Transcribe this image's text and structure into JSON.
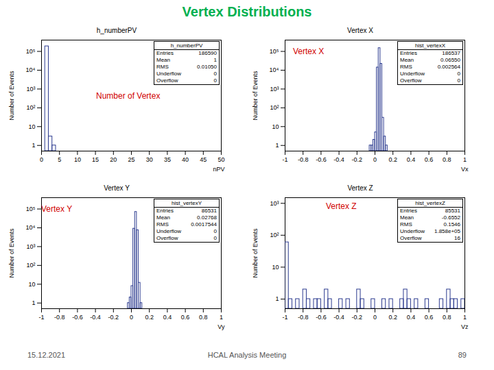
{
  "title": "Vertex Distributions",
  "footer": {
    "date": "15.12.2021",
    "meeting": "HCAL Analysis Meeting",
    "page": "89"
  },
  "chart_data": [
    {
      "type": "histogram",
      "title": "h_numberPV",
      "annotation": "Number of Vertex",
      "x_label": "nPV",
      "y_label": "Number of Events",
      "color": "#2b3a8f",
      "log": "y",
      "bins": [
        0,
        1,
        2,
        3,
        4,
        5,
        6,
        7,
        8,
        9,
        10,
        11,
        12,
        13,
        14,
        15,
        16,
        17,
        18,
        19,
        20,
        21,
        22,
        23,
        24,
        25,
        26,
        27,
        28,
        29,
        30,
        31,
        32,
        33,
        34,
        35,
        36,
        37,
        38,
        39,
        40,
        41,
        42,
        43,
        44,
        45,
        46,
        47,
        48,
        49,
        50
      ],
      "counts": [
        0,
        186586,
        3,
        1,
        0,
        0,
        0,
        0,
        0,
        0,
        0,
        0,
        0,
        0,
        0,
        0,
        0,
        0,
        0,
        0,
        0,
        0,
        0,
        0,
        0,
        0,
        0,
        0,
        0,
        0,
        0,
        0,
        0,
        0,
        0,
        0,
        0,
        0,
        0,
        0,
        0,
        0,
        0,
        0,
        0,
        0,
        0,
        0,
        0,
        0
      ],
      "xlim": [
        0,
        50
      ],
      "xticks": [
        0,
        5,
        10,
        15,
        20,
        25,
        30,
        35,
        40,
        45,
        50
      ],
      "ylim": [
        0.5,
        400000
      ],
      "yticks": [
        1,
        10,
        {
          "value": 100,
          "label": "10²"
        },
        {
          "value": 1000,
          "label": "10³"
        },
        {
          "value": 10000,
          "label": "10⁴"
        },
        {
          "value": 100000,
          "label": "10⁵"
        }
      ],
      "stats": {
        "name": "h_numberPV",
        "rows": [
          [
            "Entries",
            "186590"
          ],
          [
            "Mean",
            "1"
          ],
          [
            "RMS",
            "0.01050"
          ],
          [
            "Underflow",
            "0"
          ],
          [
            "Overflow",
            "0"
          ]
        ]
      }
    },
    {
      "type": "histogram",
      "title": "Vertex X",
      "annotation": "Vertex X",
      "x_label": "Vx",
      "y_label": "Number of Events",
      "color": "#2b3a8f",
      "log": "y",
      "bins": [
        -0.1,
        -0.08,
        -0.06,
        -0.04,
        -0.02,
        0,
        0.02,
        0.04,
        0.06,
        0.08,
        0.1,
        0.12,
        0.14,
        0.16,
        0.18,
        0.2
      ],
      "counts": [
        0,
        0,
        1,
        1,
        2,
        5,
        14000,
        150000,
        22000,
        30,
        3,
        1,
        0,
        0,
        0
      ],
      "xlim": [
        -1,
        1
      ],
      "xticks": [
        -1,
        -0.8,
        -0.6,
        -0.4,
        -0.2,
        0,
        0.2,
        0.4,
        0.6,
        0.8,
        1
      ],
      "ylim": [
        0.5,
        400000
      ],
      "yticks": [
        1,
        10,
        {
          "value": 100,
          "label": "10²"
        },
        {
          "value": 1000,
          "label": "10³"
        },
        {
          "value": 10000,
          "label": "10⁴"
        },
        {
          "value": 100000,
          "label": "10⁵"
        }
      ],
      "stats": {
        "name": "hist_vertexX",
        "rows": [
          [
            "Entries",
            "186537"
          ],
          [
            "Mean",
            "0.06550"
          ],
          [
            "RMS",
            "0.002564"
          ],
          [
            "Underflow",
            "0"
          ],
          [
            "Overflow",
            "0"
          ]
        ]
      }
    },
    {
      "type": "histogram",
      "title": "Vertex Y",
      "annotation": "Vertex Y",
      "x_label": "Vy",
      "y_label": "Number of Events",
      "color": "#2b3a8f",
      "log": "y",
      "bins": [
        -0.1,
        -0.08,
        -0.06,
        -0.04,
        -0.02,
        0,
        0.02,
        0.04,
        0.06,
        0.08,
        0.1,
        0.12,
        0.14,
        0.16,
        0.18,
        0.2
      ],
      "counts": [
        0,
        0,
        0,
        1,
        2,
        8,
        9000,
        70000,
        7500,
        12,
        1,
        0,
        0,
        0,
        0
      ],
      "xlim": [
        -1,
        1
      ],
      "xticks": [
        -1,
        -0.8,
        -0.6,
        -0.4,
        -0.2,
        0,
        0.2,
        0.4,
        0.6,
        0.8,
        1
      ],
      "ylim": [
        0.5,
        400000
      ],
      "yticks": [
        1,
        10,
        {
          "value": 100,
          "label": "10²"
        },
        {
          "value": 1000,
          "label": "10³"
        },
        {
          "value": 10000,
          "label": "10⁴"
        },
        {
          "value": 100000,
          "label": "10⁵"
        }
      ],
      "stats": {
        "name": "hist_vertexY",
        "rows": [
          [
            "Entries",
            "86531"
          ],
          [
            "Mean",
            "0.02768"
          ],
          [
            "RMS",
            "0.0017544"
          ],
          [
            "Underflow",
            "0"
          ],
          [
            "Overflow",
            "0"
          ]
        ]
      }
    },
    {
      "type": "histogram",
      "title": "Vertex Z",
      "annotation": "Vertex Z",
      "x_label": "Vz",
      "y_label": "Number of Events",
      "color": "#2b3a8f",
      "log": "y",
      "bins": [
        -1,
        -0.96,
        -0.92,
        -0.88,
        -0.84,
        -0.8,
        -0.76,
        -0.72,
        -0.68,
        -0.64,
        -0.6,
        -0.56,
        -0.52,
        -0.48,
        -0.44,
        -0.4,
        -0.36,
        -0.32,
        -0.28,
        -0.24,
        -0.2,
        -0.16,
        -0.12,
        -0.08,
        -0.04,
        0,
        0.04,
        0.08,
        0.12,
        0.16,
        0.2,
        0.24,
        0.28,
        0.32,
        0.36,
        0.4,
        0.44,
        0.48,
        0.52,
        0.56,
        0.6,
        0.64,
        0.68,
        0.72,
        0.76,
        0.8,
        0.84,
        0.88,
        0.92,
        0.96,
        1
      ],
      "counts": [
        60,
        1,
        0,
        1,
        0,
        2,
        1,
        0,
        1,
        1,
        0,
        2,
        1,
        0,
        0,
        1,
        0,
        1,
        0,
        0,
        2,
        1,
        0,
        0,
        1,
        0,
        0,
        1,
        0,
        1,
        0,
        0,
        1,
        2,
        1,
        0,
        1,
        0,
        0,
        1,
        0,
        0,
        0,
        1,
        0,
        2,
        1,
        1,
        0,
        1
      ],
      "xlim": [
        -1,
        1
      ],
      "xticks": [
        -1,
        -0.8,
        -0.6,
        -0.4,
        -0.2,
        0,
        0.2,
        0.4,
        0.6,
        0.8,
        1
      ],
      "ylim": [
        0.5,
        1500
      ],
      "yticks": [
        1,
        10,
        {
          "value": 100,
          "label": "10²"
        },
        {
          "value": 1000,
          "label": "10³"
        }
      ],
      "stats": {
        "name": "hist_vertexZ",
        "rows": [
          [
            "Entries",
            "85531"
          ],
          [
            "Mean",
            "-0.6552"
          ],
          [
            "RMS",
            "0.1546"
          ],
          [
            "Underflow",
            "1.858e+05"
          ],
          [
            "Overflow",
            "16"
          ]
        ]
      }
    }
  ]
}
